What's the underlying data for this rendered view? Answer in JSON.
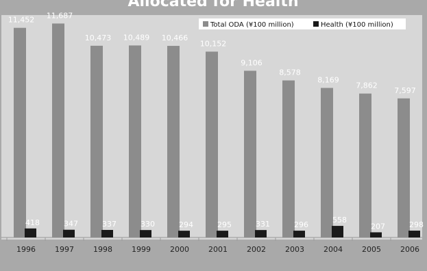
{
  "chart_data": {
    "type": "bar",
    "title": "Allocated for Health",
    "categories": [
      "1996",
      "1997",
      "1998",
      "1999",
      "2000",
      "2001",
      "2002",
      "2003",
      "2004",
      "2005",
      "2006"
    ],
    "series": [
      {
        "name": "Total ODA (¥100 million)",
        "values": [
          11452,
          11687,
          10473,
          10489,
          10466,
          10152,
          9106,
          8578,
          8169,
          7862,
          7597
        ],
        "labels": [
          "11,452",
          "11,687",
          "10,473",
          "10,489",
          "10,466",
          "10,152",
          "9,106",
          "8,578",
          "8,169",
          "7,862",
          "7,597"
        ]
      },
      {
        "name": "Health (¥100 million)",
        "values": [
          418,
          347,
          337,
          330,
          294,
          295,
          331,
          296,
          558,
          207,
          298
        ],
        "labels": [
          "418",
          "347",
          "337",
          "330",
          "294",
          "295",
          "331",
          "296",
          "558",
          "207",
          "298"
        ]
      }
    ],
    "ylim": [
      0,
      12000
    ],
    "grid": false,
    "legend_position": "top-right",
    "colors": {
      "total_oda": "#8c8c8c",
      "health": "#1a1a1a",
      "plot_background": "#d7d7d7",
      "page_background": "#a9a9a9"
    }
  }
}
